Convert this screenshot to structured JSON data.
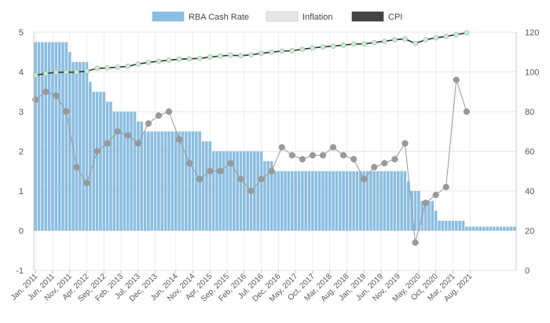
{
  "chart_data": {
    "type": "bar",
    "legend_position": "top",
    "grid": true,
    "series": [
      {
        "name": "RBA Cash Rate",
        "type": "bar",
        "axis": "left",
        "color": "#8bbde0",
        "values": [
          4.75,
          4.75,
          4.75,
          4.75,
          4.75,
          4.75,
          4.75,
          4.75,
          4.75,
          4.75,
          4.5,
          4.25,
          4.25,
          4.25,
          4.25,
          4.25,
          3.75,
          3.5,
          3.5,
          3.5,
          3.5,
          3.25,
          3.25,
          3,
          3,
          3,
          3,
          3,
          3,
          3,
          2.75,
          2.75,
          2.5,
          2.5,
          2.5,
          2.5,
          2.5,
          2.5,
          2.5,
          2.5,
          2.5,
          2.5,
          2.5,
          2.5,
          2.5,
          2.5,
          2.5,
          2.5,
          2.5,
          2.25,
          2.25,
          2.25,
          2,
          2,
          2,
          2,
          2,
          2,
          2,
          2,
          2,
          2,
          2,
          2,
          2,
          2,
          2,
          1.75,
          1.75,
          1.75,
          1.5,
          1.5,
          1.5,
          1.5,
          1.5,
          1.5,
          1.5,
          1.5,
          1.5,
          1.5,
          1.5,
          1.5,
          1.5,
          1.5,
          1.5,
          1.5,
          1.5,
          1.5,
          1.5,
          1.5,
          1.5,
          1.5,
          1.5,
          1.5,
          1.5,
          1.5,
          1.5,
          1.5,
          1.5,
          1.5,
          1.5,
          1.5,
          1.5,
          1.5,
          1.5,
          1.5,
          1.5,
          1.5,
          1.5,
          1.25,
          1,
          1,
          1,
          0.75,
          0.75,
          0.75,
          0.75,
          0.5,
          0.25,
          0.25,
          0.25,
          0.25,
          0.25,
          0.25,
          0.25,
          0.25,
          0.1,
          0.1,
          0.1,
          0.1,
          0.1,
          0.1,
          0.1,
          0.1,
          0.1,
          0.1,
          0.1,
          0.1,
          0.1,
          0.1,
          0.1
        ]
      },
      {
        "name": "Inflation",
        "type": "line",
        "axis": "left",
        "color": "#999999",
        "points": [
          [
            0,
            3.3
          ],
          [
            1,
            3.5
          ],
          [
            2,
            3.4
          ],
          [
            3,
            3.0
          ],
          [
            4,
            1.6
          ],
          [
            5,
            1.2
          ],
          [
            6,
            2.0
          ],
          [
            7,
            2.2
          ],
          [
            8,
            2.5
          ],
          [
            9,
            2.4
          ],
          [
            10,
            2.2
          ],
          [
            11,
            2.7
          ],
          [
            12,
            2.9
          ],
          [
            13,
            3.0
          ],
          [
            14,
            2.3
          ],
          [
            15,
            1.7
          ],
          [
            16,
            1.3
          ],
          [
            17,
            1.5
          ],
          [
            18,
            1.5
          ],
          [
            19,
            1.7
          ],
          [
            20,
            1.3
          ],
          [
            21,
            1.0
          ],
          [
            22,
            1.3
          ],
          [
            23,
            1.5
          ],
          [
            24,
            2.1
          ],
          [
            25,
            1.9
          ],
          [
            26,
            1.8
          ],
          [
            27,
            1.9
          ],
          [
            28,
            1.9
          ],
          [
            29,
            2.1
          ],
          [
            30,
            1.9
          ],
          [
            31,
            1.8
          ],
          [
            32,
            1.3
          ],
          [
            33,
            1.6
          ],
          [
            34,
            1.7
          ],
          [
            35,
            1.8
          ],
          [
            36,
            2.2
          ],
          [
            37,
            -0.3
          ],
          [
            38,
            0.7
          ],
          [
            39,
            0.9
          ],
          [
            40,
            1.1
          ],
          [
            41,
            3.8
          ],
          [
            42,
            3.0
          ]
        ]
      },
      {
        "name": "CPI",
        "type": "line",
        "axis": "right",
        "color": "#333333",
        "points": [
          [
            0,
            98.3
          ],
          [
            1,
            99.2
          ],
          [
            2,
            99.8
          ],
          [
            3,
            99.9
          ],
          [
            4,
            99.9
          ],
          [
            5,
            100.4
          ],
          [
            6,
            101.8
          ],
          [
            7,
            102.0
          ],
          [
            8,
            102.4
          ],
          [
            9,
            102.8
          ],
          [
            10,
            104.0
          ],
          [
            11,
            104.8
          ],
          [
            12,
            105.4
          ],
          [
            13,
            105.9
          ],
          [
            14,
            106.4
          ],
          [
            15,
            106.6
          ],
          [
            16,
            106.8
          ],
          [
            17,
            107.5
          ],
          [
            18,
            108.0
          ],
          [
            19,
            108.4
          ],
          [
            20,
            108.2
          ],
          [
            21,
            108.6
          ],
          [
            22,
            109.4
          ],
          [
            23,
            110.0
          ],
          [
            24,
            110.5
          ],
          [
            25,
            110.7
          ],
          [
            26,
            111.4
          ],
          [
            27,
            112.1
          ],
          [
            28,
            112.6
          ],
          [
            29,
            113.0
          ],
          [
            30,
            113.5
          ],
          [
            31,
            114.1
          ],
          [
            32,
            114.1
          ],
          [
            33,
            114.8
          ],
          [
            34,
            115.4
          ],
          [
            35,
            116.2
          ],
          [
            36,
            116.6
          ],
          [
            37,
            114.4
          ],
          [
            38,
            116.2
          ],
          [
            39,
            117.2
          ],
          [
            40,
            117.9
          ],
          [
            41,
            118.8
          ],
          [
            42,
            119.7
          ]
        ]
      }
    ],
    "y_left": {
      "min": -1,
      "max": 5,
      "ticks": [
        "-1",
        "0",
        "1",
        "2",
        "3",
        "4",
        "5"
      ]
    },
    "y_right": {
      "min": 0,
      "max": 120,
      "ticks": [
        "0",
        "20",
        "40",
        "60",
        "80",
        "100",
        "120"
      ]
    },
    "x_tick_labels": [
      "Jan, 2011",
      "Jun, 2011",
      "Nov, 2011",
      "Apr, 2012",
      "Sep, 2012",
      "Feb, 2013",
      "Jul, 2013",
      "Dec, 2013",
      "Jun, 2014",
      "Nov, 2014",
      "Apr, 2015",
      "Sep, 2015",
      "Feb, 2016",
      "Jul, 2016",
      "Dec, 2016",
      "May, 2017",
      "Oct, 2017",
      "Mar, 2018",
      "Aug, 2018",
      "Jan, 2019",
      "Jun, 2019",
      "Nov, 2019",
      "May, 2020",
      "Oct, 2020",
      "Mar, 2021",
      "Aug, 2021"
    ],
    "x_tick_positions": [
      0,
      5,
      10,
      15,
      20,
      25,
      30,
      35,
      41,
      46,
      51,
      56,
      61,
      66,
      71,
      76,
      81,
      86,
      91,
      96,
      101,
      106,
      112,
      117,
      122,
      127
    ],
    "line_point_spacing_months": 3
  }
}
